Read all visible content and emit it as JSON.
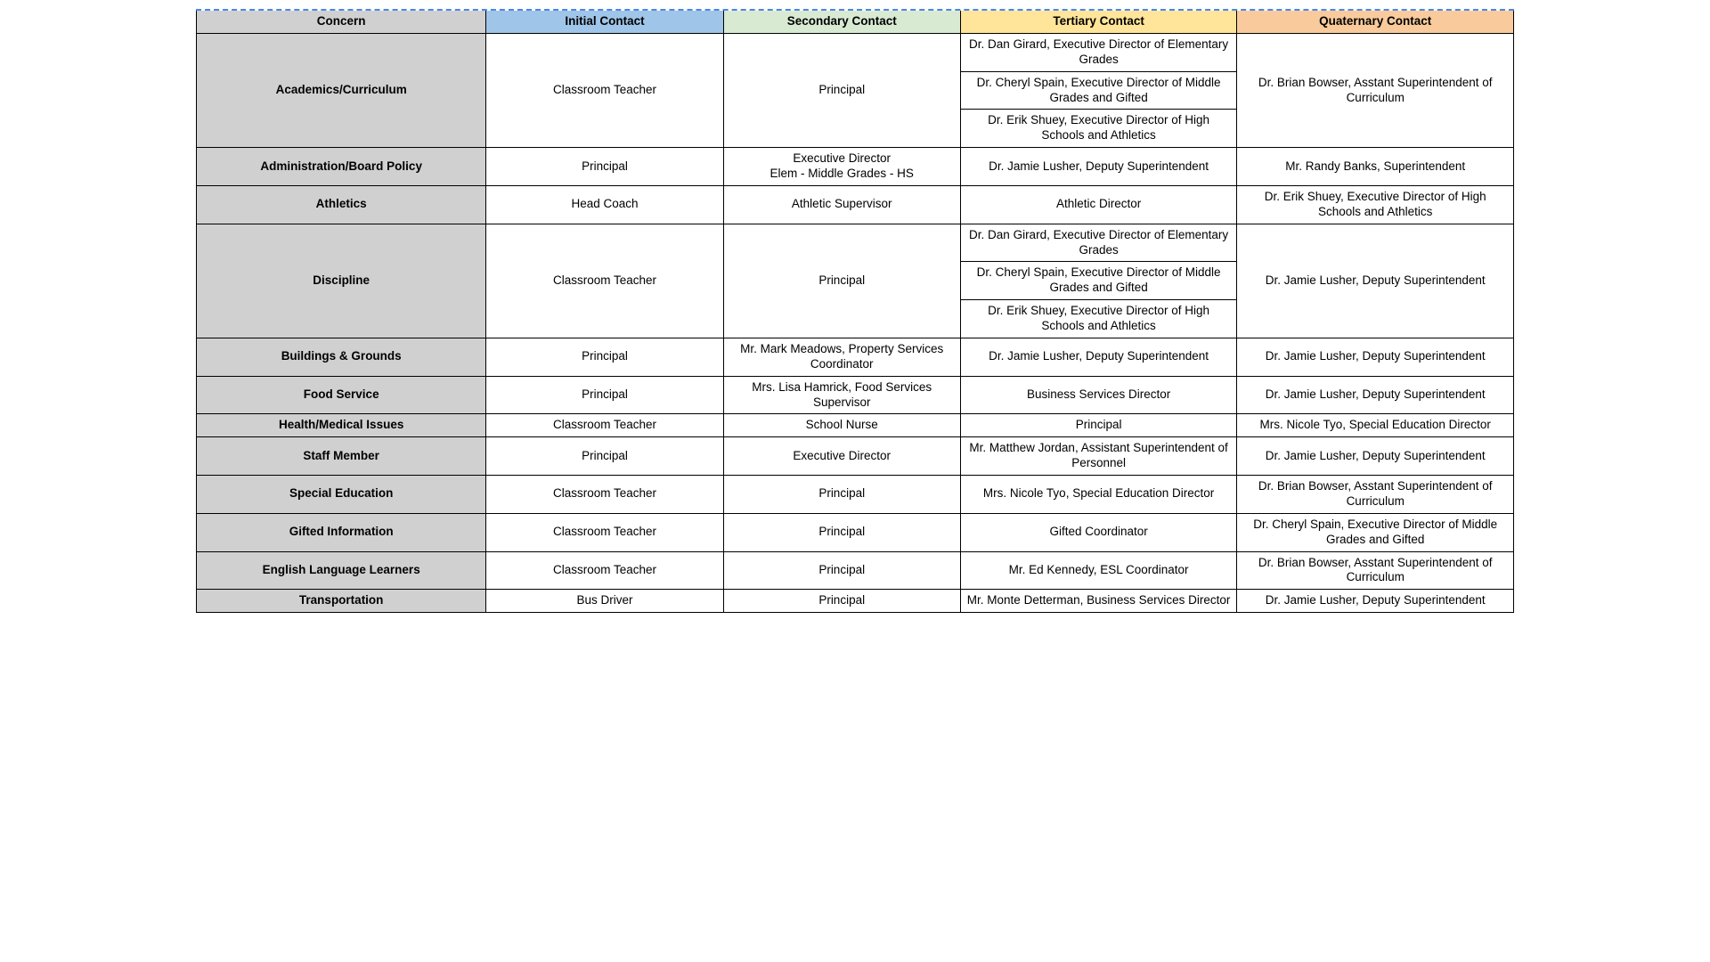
{
  "table": {
    "headers": [
      {
        "label": "Concern",
        "bg": "#d0d0d0"
      },
      {
        "label": "Initial Contact",
        "bg": "#9fc5e8"
      },
      {
        "label": "Secondary Contact",
        "bg": "#d9ead3"
      },
      {
        "label": "Tertiary Contact",
        "bg": "#ffe599"
      },
      {
        "label": "Quaternary Contact",
        "bg": "#f9cb9c"
      }
    ],
    "column_bg": {
      "concern": "#d0d0d0",
      "default": "#ffffff"
    },
    "rows": [
      {
        "concern": "Academics/Curriculum",
        "concern_rows": 3,
        "initial": "Classroom Teacher",
        "initial_rows": 3,
        "secondary": "Principal",
        "secondary_rows": 3,
        "tertiary": "Dr. Dan Girard, Executive Director of Elementary Grades",
        "quaternary": "Dr. Brian Bowser, Asstant Superintendent of Curriculum",
        "quaternary_rows": 3
      },
      {
        "tertiary": "Dr. Cheryl Spain, Executive Director of Middle Grades and Gifted"
      },
      {
        "tertiary": "Dr. Erik Shuey, Executive Director of High Schools and Athletics"
      },
      {
        "concern": "Administration/Board Policy",
        "initial": "Principal",
        "secondary": "Executive Director\nElem - Middle Grades - HS",
        "tertiary": "Dr. Jamie Lusher, Deputy Superintendent",
        "quaternary": "Mr. Randy Banks, Superintendent"
      },
      {
        "concern": "Athletics",
        "initial": "Head Coach",
        "secondary": "Athletic Supervisor",
        "tertiary": "Athletic Director",
        "quaternary": "Dr. Erik Shuey, Executive Director of High Schools and Athletics"
      },
      {
        "concern": "Discipline",
        "concern_rows": 3,
        "initial": "Classroom Teacher",
        "initial_rows": 3,
        "secondary": "Principal",
        "secondary_rows": 3,
        "tertiary": "Dr. Dan Girard, Executive Director of Elementary Grades",
        "quaternary": "Dr. Jamie Lusher, Deputy Superintendent",
        "quaternary_rows": 3
      },
      {
        "tertiary": "Dr. Cheryl Spain, Executive Director of Middle Grades and Gifted"
      },
      {
        "tertiary": "Dr. Erik Shuey, Executive Director of High Schools and Athletics"
      },
      {
        "concern": "Buildings & Grounds",
        "initial": "Principal",
        "secondary": "Mr. Mark Meadows, Property Services Coordinator",
        "tertiary": "Dr. Jamie Lusher, Deputy Superintendent",
        "quaternary": "Dr. Jamie Lusher, Deputy Superintendent"
      },
      {
        "concern": "Food Service",
        "initial": "Principal",
        "secondary": "Mrs. Lisa Hamrick, Food Services Supervisor",
        "tertiary": "Business Services Director",
        "quaternary": "Dr. Jamie Lusher, Deputy Superintendent"
      },
      {
        "concern": "Health/Medical Issues",
        "initial": "Classroom Teacher",
        "secondary": "School Nurse",
        "tertiary": "Principal",
        "quaternary": "Mrs. Nicole Tyo, Special Education Director"
      },
      {
        "concern": "Staff Member",
        "initial": "Principal",
        "secondary": "Executive Director",
        "tertiary": "Mr. Matthew Jordan, Assistant Superintendent of Personnel",
        "quaternary": "Dr. Jamie Lusher, Deputy Superintendent"
      },
      {
        "concern": "Special Education",
        "initial": "Classroom Teacher",
        "secondary": "Principal",
        "tertiary": "Mrs. Nicole Tyo, Special Education Director",
        "quaternary": "Dr. Brian Bowser, Asstant Superintendent of Curriculum"
      },
      {
        "concern": "Gifted Information",
        "initial": "Classroom Teacher",
        "secondary": "Principal",
        "tertiary": "Gifted Coordinator",
        "quaternary": "Dr. Cheryl Spain, Executive Director of Middle Grades and Gifted"
      },
      {
        "concern": "English Language Learners",
        "initial": "Classroom Teacher",
        "secondary": "Principal",
        "tertiary": "Mr. Ed Kennedy, ESL Coordinator",
        "quaternary": "Dr. Brian Bowser, Asstant Superintendent of Curriculum"
      },
      {
        "concern": "Transportation",
        "initial": "Bus Driver",
        "secondary": "Principal",
        "tertiary": "Mr. Monte Detterman, Business Services Director",
        "quaternary": "Dr. Jamie Lusher, Deputy Superintendent"
      }
    ]
  }
}
